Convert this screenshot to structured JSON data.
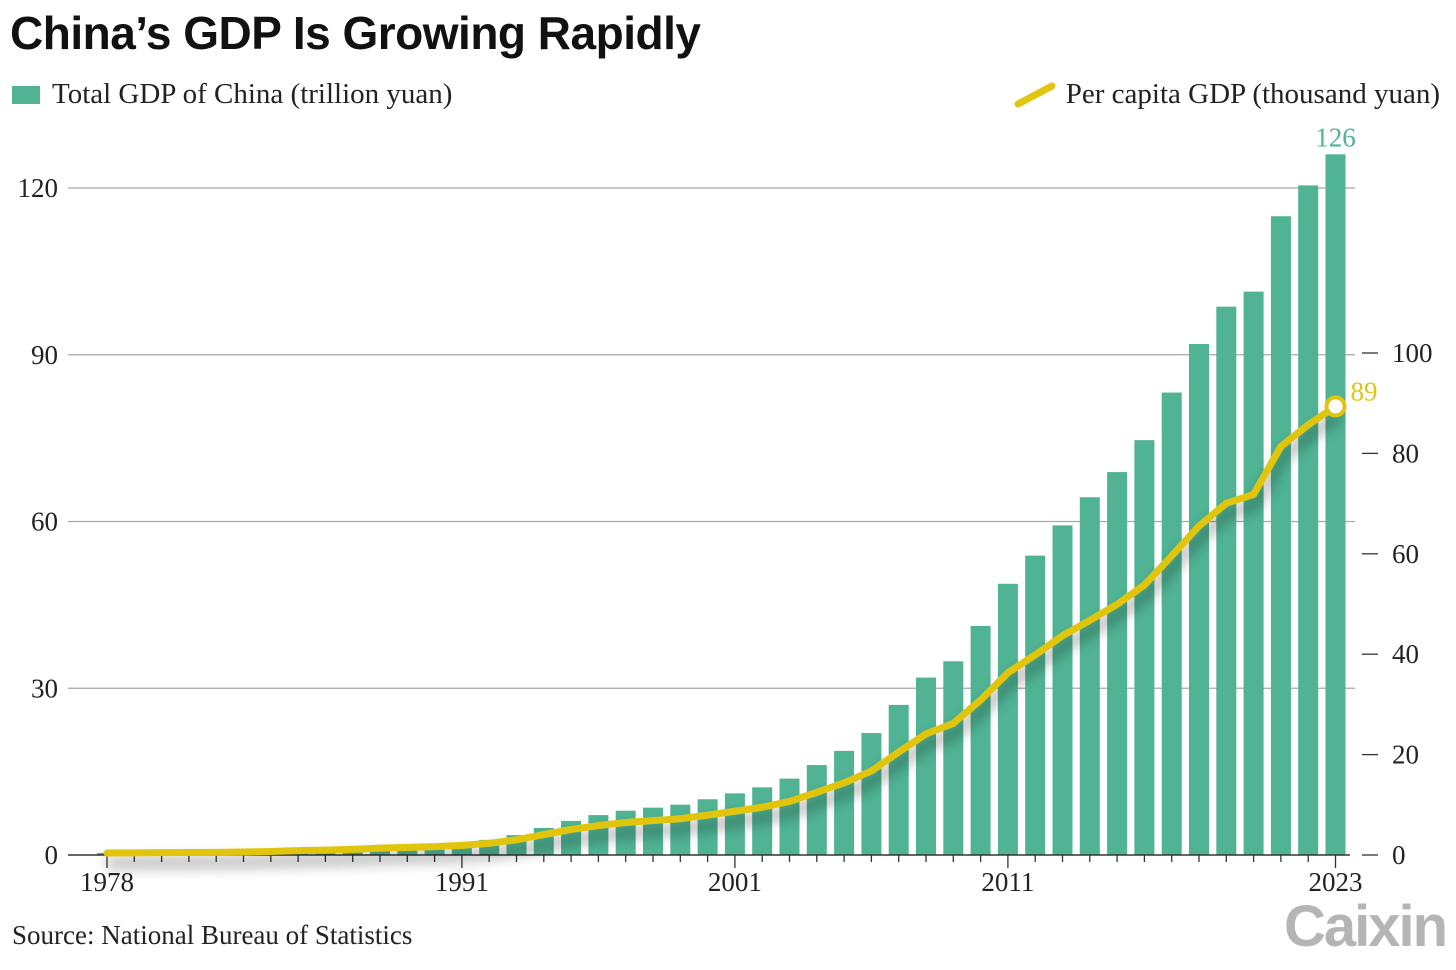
{
  "title": "China’s GDP Is Growing Rapidly",
  "source": "Source: National Bureau of Statistics",
  "logo_text": "Caixin",
  "colors": {
    "bar": "#4fb394",
    "line": "#e1c511",
    "grid": "#a8a8a8",
    "text": "#222222"
  },
  "chart_data": {
    "type": "bar",
    "x": [
      1978,
      1979,
      1980,
      1981,
      1982,
      1983,
      1984,
      1985,
      1986,
      1987,
      1988,
      1989,
      1990,
      1991,
      1992,
      1993,
      1994,
      1995,
      1996,
      1997,
      1998,
      1999,
      2000,
      2001,
      2002,
      2003,
      2004,
      2005,
      2006,
      2007,
      2008,
      2009,
      2010,
      2011,
      2012,
      2013,
      2014,
      2015,
      2016,
      2017,
      2018,
      2019,
      2020,
      2021,
      2022,
      2023
    ],
    "series": [
      {
        "name": "Total GDP of China (trillion yuan)",
        "type": "bar",
        "axis": "left",
        "values": [
          0.37,
          0.41,
          0.46,
          0.49,
          0.54,
          0.6,
          0.73,
          0.91,
          1.04,
          1.22,
          1.51,
          1.72,
          1.89,
          2.22,
          2.72,
          3.57,
          4.86,
          6.13,
          7.18,
          7.97,
          8.52,
          9.06,
          10.03,
          11.09,
          12.17,
          13.74,
          16.18,
          18.73,
          21.94,
          27.01,
          31.92,
          34.85,
          41.21,
          48.79,
          53.86,
          59.3,
          64.36,
          68.89,
          74.64,
          83.2,
          91.93,
          98.65,
          101.36,
          114.92,
          120.47,
          126.06
        ],
        "end_label": "126"
      },
      {
        "name": "Per capita GDP (thousand yuan)",
        "type": "line",
        "axis": "right",
        "values": [
          0.39,
          0.42,
          0.47,
          0.49,
          0.53,
          0.59,
          0.7,
          0.86,
          0.97,
          1.12,
          1.37,
          1.53,
          1.66,
          1.92,
          2.33,
          3.03,
          4.07,
          5.09,
          5.87,
          6.48,
          6.86,
          7.23,
          7.94,
          8.72,
          9.51,
          10.67,
          12.49,
          14.37,
          16.74,
          20.51,
          24.12,
          26.22,
          30.88,
          36.3,
          39.87,
          43.68,
          46.75,
          49.92,
          53.78,
          59.59,
          65.53,
          70.08,
          71.83,
          81.37,
          85.7,
          89.36
        ],
        "end_label": "89"
      }
    ],
    "xticks": [
      "1978",
      "1991",
      "2001",
      "2011",
      "2023"
    ],
    "y_left": {
      "ticks": [
        "0",
        "30",
        "60",
        "90",
        "120"
      ],
      "ylim": [
        0,
        130
      ]
    },
    "y_right": {
      "ticks": [
        "0",
        "20",
        "40",
        "60",
        "80",
        "100"
      ],
      "ylim": [
        0,
        130
      ]
    },
    "grid": true,
    "legend": [
      "top-left",
      "top-right"
    ]
  }
}
